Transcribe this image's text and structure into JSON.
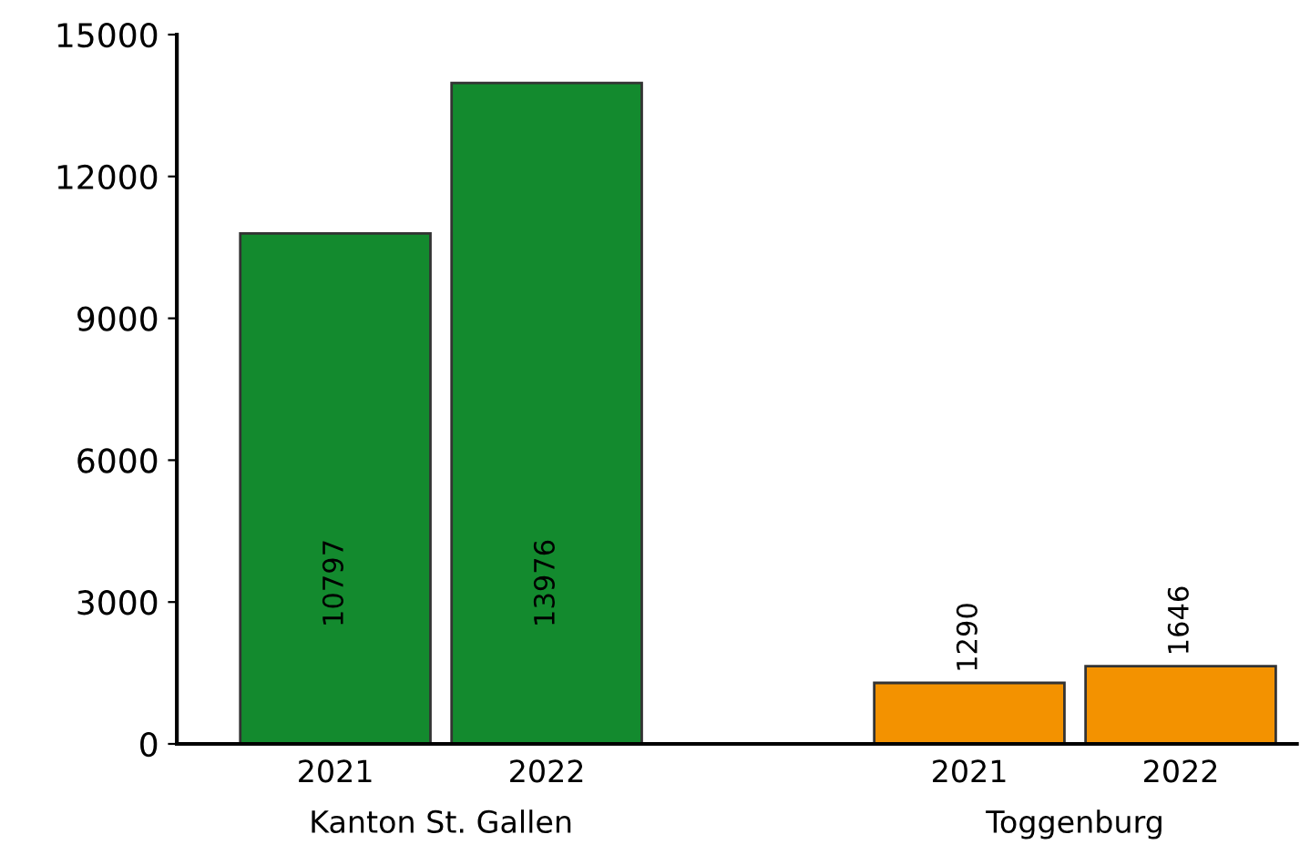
{
  "chart_data": {
    "type": "bar",
    "categories": [
      "2021",
      "2022",
      null,
      "2021",
      "2022"
    ],
    "values": [
      10797,
      13976,
      null,
      1290,
      1646
    ],
    "colors": [
      "#138a2e",
      "#138a2e",
      null,
      "#f39200",
      "#f39200"
    ],
    "data_labels": true,
    "annotations": [
      "Kanton St. Gallen",
      "Toggenburg"
    ],
    "ylim": [
      0,
      15000
    ],
    "yticks": [
      0,
      3000,
      6000,
      9000,
      12000,
      15000
    ],
    "grid": false,
    "legend": false
  }
}
